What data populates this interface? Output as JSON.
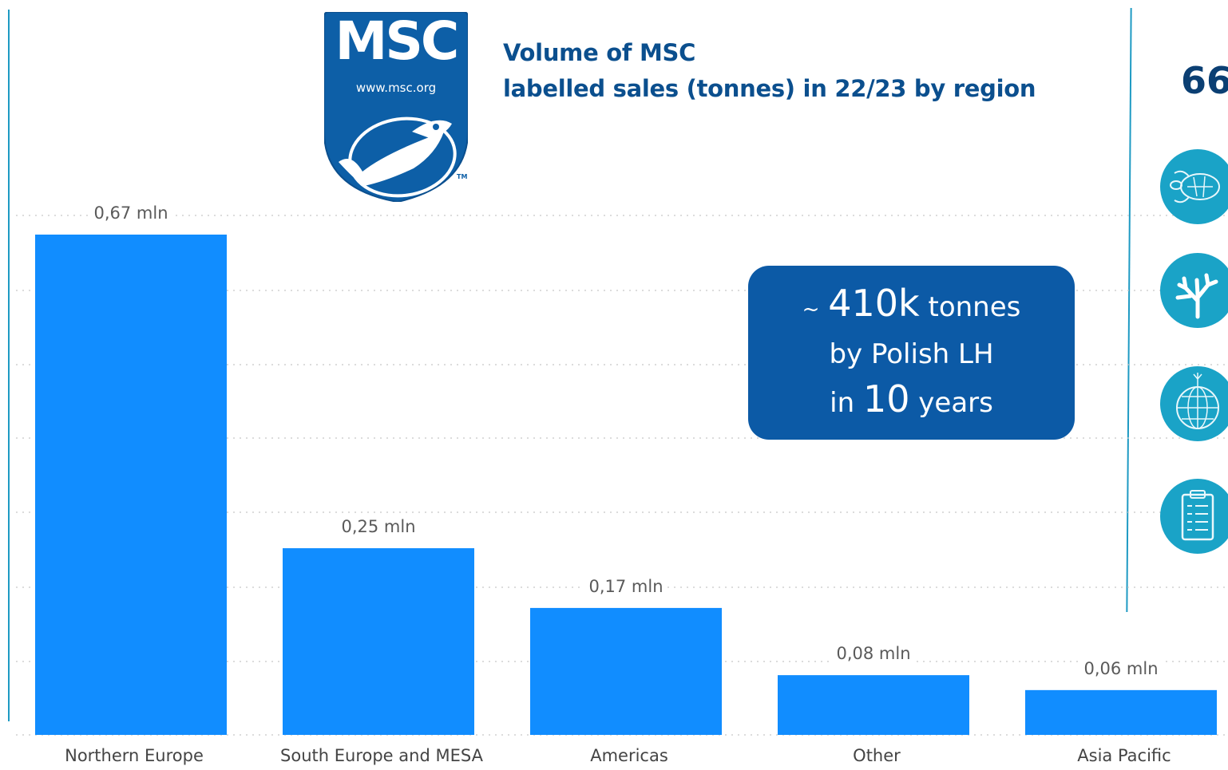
{
  "chart_data": {
    "type": "bar",
    "title": "Volume of MSC labelled sales (tonnes) in 22/23 by region",
    "title_lines": [
      "Volume of MSC",
      "labelled sales (tonnes) in 22/23 by region"
    ],
    "categories": [
      "Northern Europe",
      "South Europe and MESA",
      "Americas",
      "Other",
      "Asia Pacific"
    ],
    "values": [
      0.67,
      0.25,
      0.17,
      0.08,
      0.06
    ],
    "value_labels": [
      "0,67 mln",
      "0,25 mln",
      "0,17 mln",
      "0,08 mln",
      "0,06 mln"
    ],
    "unit": "mln tonnes",
    "ylim": [
      0,
      0.67
    ],
    "grid": true,
    "bar_color": "#118dff",
    "legend": false
  },
  "logo": {
    "brand": "MSC",
    "url": "www.msc.org",
    "trademark": "TM",
    "color": "#0d5fa7"
  },
  "callout": {
    "tilde": "~",
    "amount": "410k",
    "amount_unit": "tonnes",
    "line2": "by Polish LH",
    "line3_prefix": "in",
    "years": "10",
    "line3_suffix": "years",
    "color": "#0c5aa6"
  },
  "right_panel": {
    "number": "66",
    "icons": [
      "turtle-icon",
      "coral-icon",
      "fishing-net-icon",
      "clipboard-icon"
    ],
    "accent": "#1aa3c7"
  }
}
